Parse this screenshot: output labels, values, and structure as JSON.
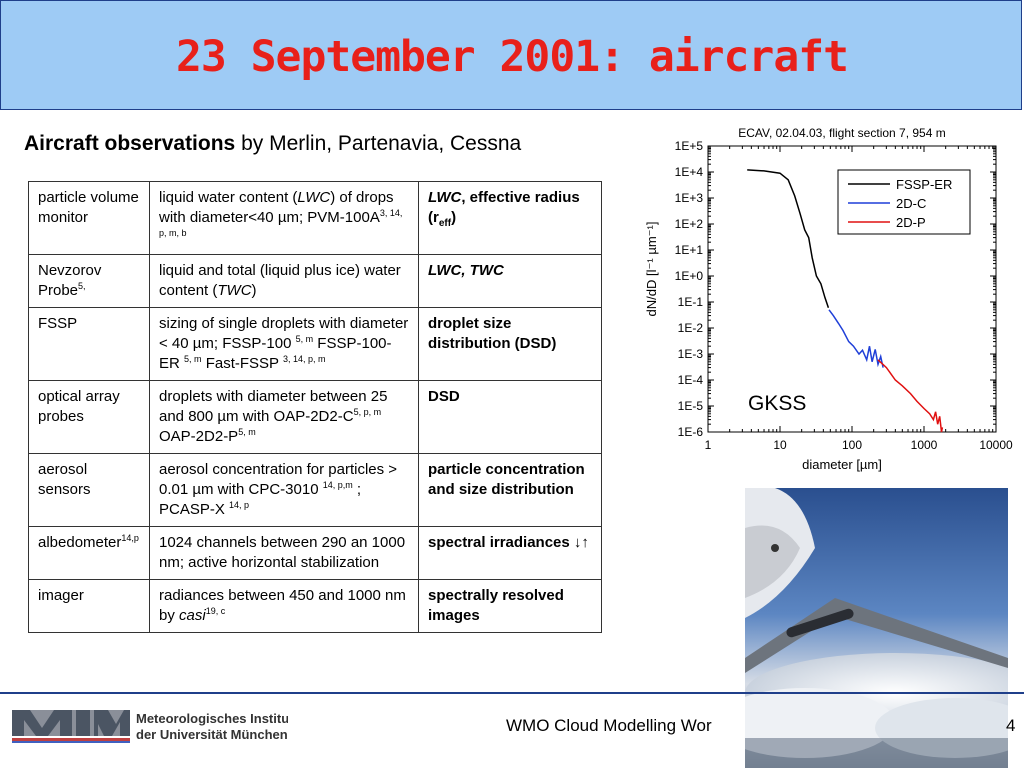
{
  "header": {
    "title": "23 September 2001: aircraft"
  },
  "subtitle": {
    "bold": "Aircraft observations",
    "rest": " by Merlin, Partenavia, Cessna"
  },
  "table": {
    "rows": [
      {
        "instrument": "particle volume monitor",
        "desc": [
          [
            "t",
            "liquid water content ("
          ],
          [
            "i",
            "LWC"
          ],
          [
            "t",
            ") of drops with diameter<40 µm; PVM-100A"
          ],
          [
            "s",
            "3, 14, p, m, b"
          ]
        ],
        "meas": [
          [
            "i",
            "LWC"
          ],
          [
            "t",
            ", effective radius (r"
          ],
          [
            "b",
            "eff"
          ],
          [
            "t",
            ")"
          ]
        ]
      },
      {
        "instrument": "Nevzorov Probe",
        "instrument_sup": "5,",
        "desc": [
          [
            "t",
            "liquid and total (liquid plus ice) water content ("
          ],
          [
            "i",
            "TWC"
          ],
          [
            "t",
            ")"
          ]
        ],
        "meas": [
          [
            "i",
            "LWC, TWC"
          ]
        ]
      },
      {
        "instrument": "FSSP",
        "desc": [
          [
            "t",
            "sizing of single droplets with diameter < 40 µm; FSSP-100 "
          ],
          [
            "s",
            "5, m"
          ],
          [
            "t",
            " FSSP-100-ER "
          ],
          [
            "s",
            "5, m"
          ],
          [
            "t",
            " Fast-FSSP "
          ],
          [
            "s",
            "3, 14, p, m"
          ]
        ],
        "meas": [
          [
            "t",
            "droplet size distribution (DSD)"
          ]
        ]
      },
      {
        "instrument": "optical array probes",
        "desc": [
          [
            "t",
            "droplets  with diameter between 25 and 800 µm with OAP-2D2-C"
          ],
          [
            "s",
            "5, p, m"
          ],
          [
            "t",
            " OAP-2D2-P"
          ],
          [
            "s",
            "5, m"
          ]
        ],
        "meas": [
          [
            "t",
            "DSD"
          ]
        ]
      },
      {
        "instrument": "aerosol sensors",
        "desc": [
          [
            "t",
            "aerosol concentration for particles > 0.01 µm with CPC-3010 "
          ],
          [
            "s",
            "14, p,m"
          ],
          [
            "t",
            " ; PCASP-X "
          ],
          [
            "s",
            "14, p"
          ]
        ],
        "meas": [
          [
            "t",
            "particle concentration and size distribution"
          ]
        ]
      },
      {
        "instrument": "albedometer",
        "instrument_sup": "14,p",
        "desc": [
          [
            "t",
            "1024 channels between 290 an 1000 nm; active horizontal stabilization"
          ]
        ],
        "meas": [
          [
            "t",
            "spectral irradiances ↓↑"
          ]
        ]
      },
      {
        "instrument": "imager",
        "desc": [
          [
            "t",
            "radiances between 450 and 1000 nm by "
          ],
          [
            "i",
            "casi"
          ],
          [
            "s",
            "19, c"
          ]
        ],
        "meas": [
          [
            "t",
            "spectrally resolved images"
          ]
        ]
      }
    ]
  },
  "chart_data": {
    "type": "line",
    "title": "ECAV, 02.04.03, flight section 7,  954 m",
    "xlabel": "diameter [µm]",
    "ylabel": "dN/dD [l⁻¹ µm⁻¹]",
    "xscale": "log",
    "yscale": "log",
    "xlim": [
      1,
      10000
    ],
    "ylim": [
      1e-06,
      100000.0
    ],
    "xticks": [
      "1",
      "10",
      "100",
      "1000",
      "10000"
    ],
    "yticks": [
      "1E+5",
      "1E+4",
      "1E+3",
      "1E+2",
      "1E+1",
      "1E+0",
      "1E-1",
      "1E-2",
      "1E-3",
      "1E-4",
      "1E-5",
      "1E-6"
    ],
    "legend_position": "top-right",
    "annotation": "GKSS",
    "series": [
      {
        "name": "FSSP-ER",
        "color": "#000000",
        "points": [
          [
            3.5,
            12000
          ],
          [
            6,
            11000
          ],
          [
            10,
            9000
          ],
          [
            13,
            5000
          ],
          [
            16,
            1200
          ],
          [
            19,
            250
          ],
          [
            22,
            60
          ],
          [
            25,
            30
          ],
          [
            28,
            5
          ],
          [
            32,
            1
          ],
          [
            37,
            0.5
          ],
          [
            42,
            0.15
          ],
          [
            47,
            0.06
          ]
        ]
      },
      {
        "name": "2D-C",
        "color": "#1f3fd8",
        "points": [
          [
            48,
            0.05
          ],
          [
            55,
            0.03
          ],
          [
            65,
            0.015
          ],
          [
            75,
            0.008
          ],
          [
            90,
            0.003
          ],
          [
            105,
            0.002
          ],
          [
            125,
            0.001
          ],
          [
            140,
            0.0014
          ],
          [
            160,
            0.0006
          ],
          [
            175,
            0.002
          ],
          [
            190,
            0.0005
          ],
          [
            210,
            0.0015
          ],
          [
            230,
            0.0004
          ],
          [
            250,
            0.0008
          ],
          [
            270,
            0.0003
          ]
        ]
      },
      {
        "name": "2D-P",
        "color": "#e01010",
        "points": [
          [
            230,
            0.0006
          ],
          [
            300,
            0.0003
          ],
          [
            400,
            0.0001
          ],
          [
            500,
            6e-05
          ],
          [
            650,
            3e-05
          ],
          [
            800,
            1.5e-05
          ],
          [
            1000,
            8e-06
          ],
          [
            1200,
            5e-06
          ],
          [
            1350,
            3e-06
          ],
          [
            1450,
            6e-06
          ],
          [
            1550,
            2e-06
          ],
          [
            1650,
            4e-06
          ],
          [
            1750,
            1e-06
          ],
          [
            1800,
            1.5e-06
          ]
        ]
      }
    ]
  },
  "footer": {
    "text": "WMO Cloud Modelling Wor",
    "page": "4",
    "logo_text_1": "Meteorologisches Institut",
    "logo_text_2": "der Universität München"
  }
}
